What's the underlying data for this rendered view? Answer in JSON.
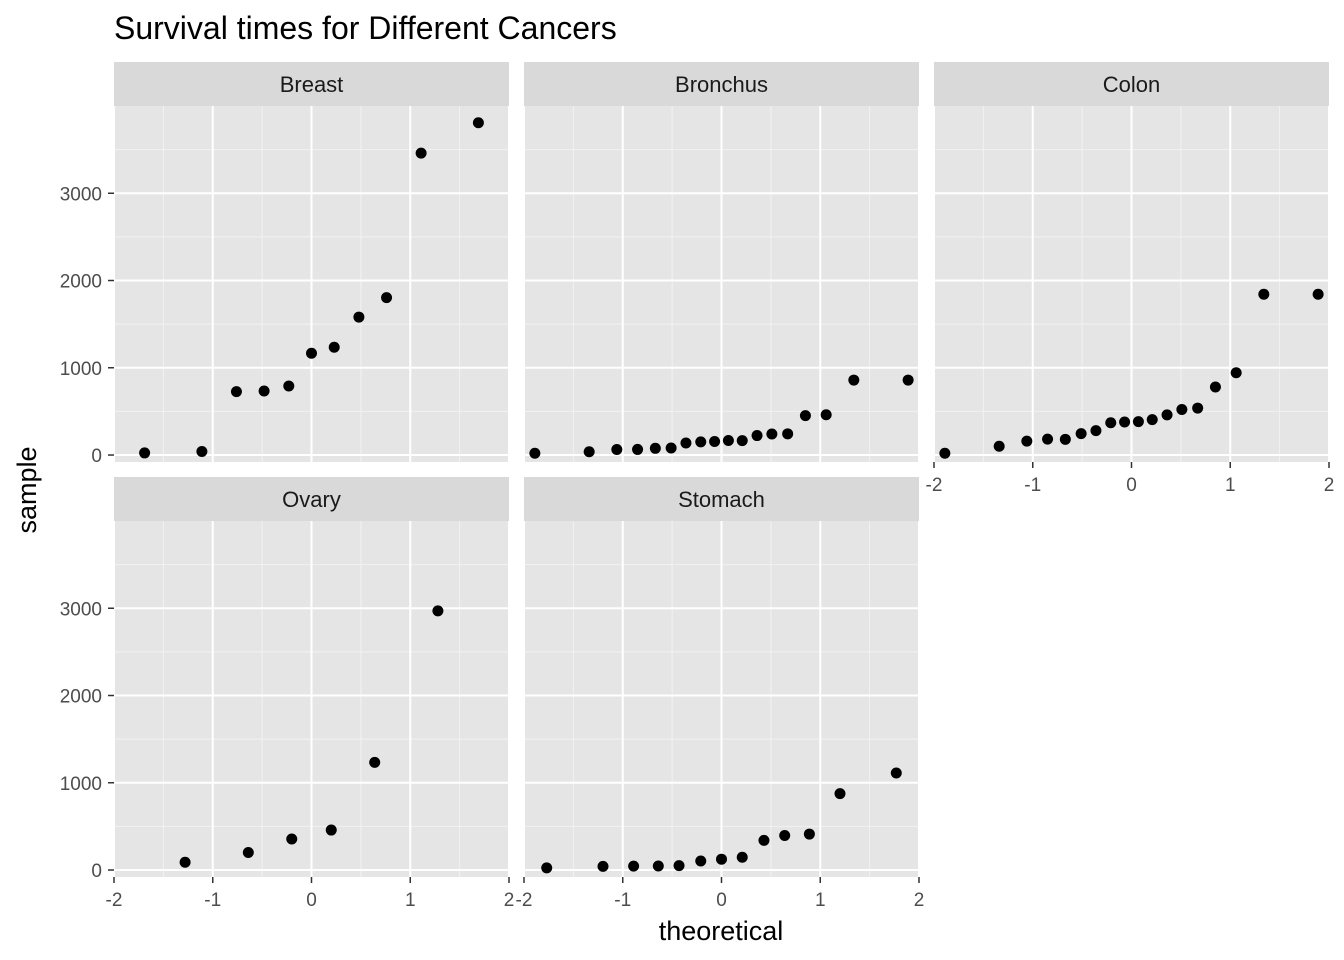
{
  "chart_data": {
    "type": "scatter",
    "title": "Survival times for Different Cancers",
    "xlabel": "theoretical",
    "ylabel": "sample",
    "xlim": [
      -2,
      2
    ],
    "ylim": [
      -80,
      4000
    ],
    "x_ticks": [
      -2,
      -1,
      0,
      1,
      2
    ],
    "y_ticks": [
      0,
      1000,
      2000,
      3000
    ],
    "x_tick_labels": [
      "-2",
      "-1",
      "0",
      "1",
      "2"
    ],
    "y_tick_labels": [
      "0",
      "1000",
      "2000",
      "3000"
    ],
    "grid": true,
    "panel_background": "#e5e5e5",
    "strip_background": "#d9d9d9",
    "point_color": "#000000",
    "panels": [
      {
        "name": "Breast",
        "points": [
          [
            -1.69,
            24
          ],
          [
            -1.11,
            40
          ],
          [
            -0.76,
            727
          ],
          [
            -0.48,
            734
          ],
          [
            -0.23,
            791
          ],
          [
            0.0,
            1166
          ],
          [
            0.23,
            1235
          ],
          [
            0.48,
            1581
          ],
          [
            0.76,
            1804
          ],
          [
            1.11,
            3460
          ],
          [
            1.69,
            3808
          ]
        ]
      },
      {
        "name": "Bronchus",
        "points": [
          [
            -1.89,
            20
          ],
          [
            -1.34,
            38
          ],
          [
            -1.06,
            63
          ],
          [
            -0.85,
            64
          ],
          [
            -0.67,
            77
          ],
          [
            -0.51,
            80
          ],
          [
            -0.36,
            138
          ],
          [
            -0.21,
            151
          ],
          [
            -0.07,
            155
          ],
          [
            0.07,
            166
          ],
          [
            0.21,
            165
          ],
          [
            0.36,
            223
          ],
          [
            0.51,
            241
          ],
          [
            0.67,
            243
          ],
          [
            0.85,
            452
          ],
          [
            1.06,
            462
          ],
          [
            1.34,
            859
          ],
          [
            1.89,
            859
          ]
        ]
      },
      {
        "name": "Colon",
        "points": [
          [
            -1.89,
            20
          ],
          [
            -1.34,
            100
          ],
          [
            -1.06,
            159
          ],
          [
            -0.85,
            182
          ],
          [
            -0.67,
            180
          ],
          [
            -0.51,
            245
          ],
          [
            -0.36,
            280
          ],
          [
            -0.21,
            370
          ],
          [
            -0.07,
            378
          ],
          [
            0.07,
            383
          ],
          [
            0.21,
            406
          ],
          [
            0.36,
            460
          ],
          [
            0.51,
            522
          ],
          [
            0.67,
            538
          ],
          [
            0.85,
            780
          ],
          [
            1.06,
            943
          ],
          [
            1.34,
            1843
          ],
          [
            1.89,
            1843
          ]
        ]
      },
      {
        "name": "Ovary",
        "points": [
          [
            -1.28,
            89
          ],
          [
            -0.64,
            201
          ],
          [
            -0.2,
            356
          ],
          [
            0.2,
            458
          ],
          [
            0.64,
            1234
          ],
          [
            1.28,
            2970
          ]
        ]
      },
      {
        "name": "Stomach",
        "points": [
          [
            -1.77,
            25
          ],
          [
            -1.2,
            42
          ],
          [
            -0.89,
            45
          ],
          [
            -0.64,
            46
          ],
          [
            -0.43,
            50
          ],
          [
            -0.21,
            103
          ],
          [
            0.0,
            124
          ],
          [
            0.21,
            146
          ],
          [
            0.43,
            340
          ],
          [
            0.64,
            396
          ],
          [
            0.89,
            412
          ],
          [
            1.2,
            876
          ],
          [
            1.77,
            1112
          ]
        ]
      }
    ]
  }
}
